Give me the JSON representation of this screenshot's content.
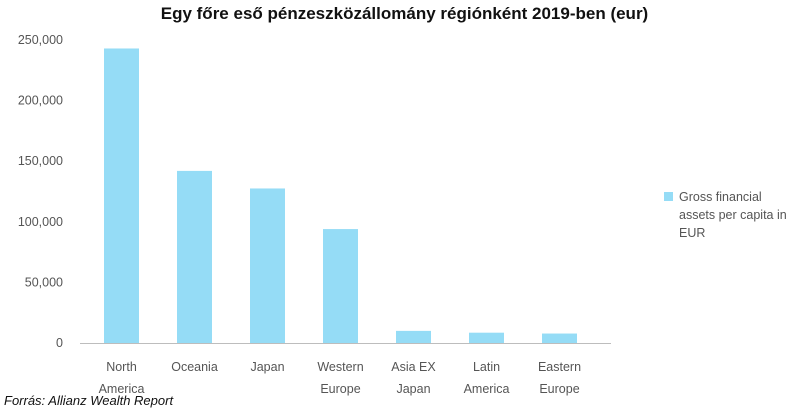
{
  "chart_data": {
    "type": "bar",
    "title": "Egy főre eső pénzeszközállomány régiónként 2019-ben (eur)",
    "categories": [
      [
        "North",
        "America"
      ],
      [
        "Oceania"
      ],
      [
        "Japan"
      ],
      [
        "Western",
        "Europe"
      ],
      [
        "Asia EX",
        "Japan"
      ],
      [
        "Latin",
        "America"
      ],
      [
        "Eastern",
        "Europe"
      ]
    ],
    "series": [
      {
        "name": "Gross financial assets per capita in EUR",
        "legend_lines": [
          "Gross financial",
          "assets per capita in",
          "EUR"
        ],
        "color": "#95dcf6",
        "values": [
          243000,
          142000,
          127500,
          94000,
          10000,
          8500,
          7800
        ]
      }
    ],
    "ylim": [
      0,
      250000
    ],
    "yticks": [
      0,
      50000,
      100000,
      150000,
      200000,
      250000
    ],
    "ytick_labels": [
      "0",
      "50,000",
      "100,000",
      "150,000",
      "200,000",
      "250,000"
    ],
    "grid": false,
    "legend": "right"
  },
  "source": "Forrás: Allianz Wealth Report"
}
